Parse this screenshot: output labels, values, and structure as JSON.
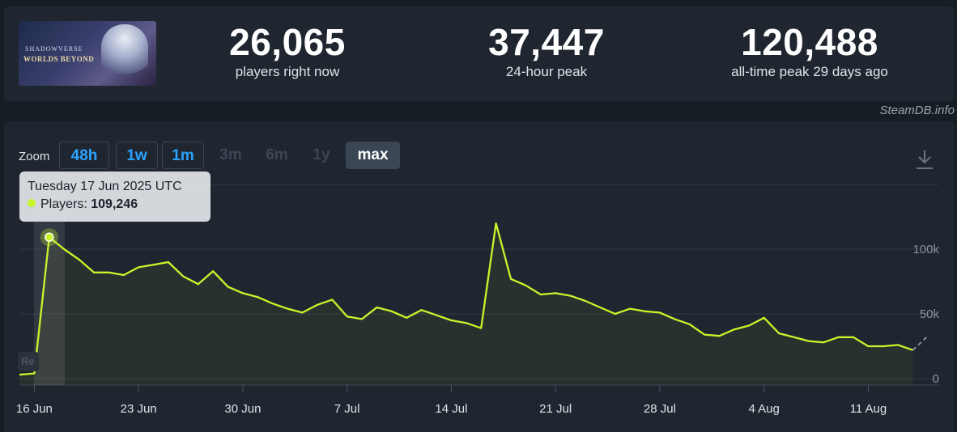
{
  "game": {
    "logo_line1": "SHADOWVERSE",
    "logo_line2": "WORLDS BEYOND"
  },
  "stats": [
    {
      "value": "26,065",
      "label": "players right now"
    },
    {
      "value": "37,447",
      "label": "24-hour peak"
    },
    {
      "value": "120,488",
      "label": "all-time peak 29 days ago"
    }
  ],
  "watermark": "SteamDB.info",
  "zoom": {
    "label": "Zoom",
    "buttons": [
      {
        "label": "48h",
        "state": "enabled"
      },
      {
        "label": "1w",
        "state": "enabled"
      },
      {
        "label": "1m",
        "state": "enabled"
      },
      {
        "label": "3m",
        "state": "disabled"
      },
      {
        "label": "6m",
        "state": "disabled"
      },
      {
        "label": "1y",
        "state": "disabled"
      },
      {
        "label": "max",
        "state": "active"
      }
    ]
  },
  "reset_label": "Re",
  "tooltip": {
    "date": "Tuesday 17 Jun 2025 UTC",
    "series_label": "Players:",
    "value": "109,246"
  },
  "colors": {
    "line": "#c8f52a",
    "background": "#1f2630",
    "accent": "#2ba3ff"
  },
  "chart_data": {
    "type": "line",
    "x_ticks": [
      "16 Jun",
      "23 Jun",
      "30 Jun",
      "7 Jul",
      "14 Jul",
      "21 Jul",
      "28 Jul",
      "4 Aug",
      "11 Aug"
    ],
    "y_ticks": [
      "0",
      "50k",
      "100k"
    ],
    "ylim": [
      0,
      150000
    ],
    "highlighted": {
      "x": "17 Jun",
      "y": 109246
    },
    "series": [
      {
        "points": [
          [
            "15 Jun",
            3000
          ],
          [
            "16 Jun",
            4000
          ],
          [
            "17 Jun",
            109246
          ],
          [
            "18 Jun",
            100000
          ],
          [
            "19 Jun",
            92000
          ],
          [
            "20 Jun",
            82000
          ],
          [
            "21 Jun",
            82000
          ],
          [
            "22 Jun",
            80000
          ],
          [
            "23 Jun",
            86000
          ],
          [
            "24 Jun",
            88000
          ],
          [
            "25 Jun",
            90000
          ],
          [
            "26 Jun",
            79000
          ],
          [
            "27 Jun",
            73000
          ],
          [
            "28 Jun",
            83000
          ],
          [
            "29 Jun",
            71000
          ],
          [
            "30 Jun",
            66000
          ],
          [
            "1 Jul",
            63000
          ],
          [
            "2 Jul",
            58000
          ],
          [
            "3 Jul",
            54000
          ],
          [
            "4 Jul",
            51000
          ],
          [
            "5 Jul",
            57000
          ],
          [
            "6 Jul",
            61000
          ],
          [
            "7 Jul",
            48000
          ],
          [
            "8 Jul",
            46000
          ],
          [
            "9 Jul",
            55000
          ],
          [
            "10 Jul",
            52000
          ],
          [
            "11 Jul",
            47000
          ],
          [
            "12 Jul",
            53000
          ],
          [
            "13 Jul",
            49000
          ],
          [
            "14 Jul",
            45000
          ],
          [
            "15 Jul",
            43000
          ],
          [
            "16 Jul",
            39000
          ],
          [
            "17 Jul",
            120000
          ],
          [
            "18 Jul",
            77000
          ],
          [
            "19 Jul",
            72000
          ],
          [
            "20 Jul",
            65000
          ],
          [
            "21 Jul",
            66000
          ],
          [
            "22 Jul",
            64000
          ],
          [
            "23 Jul",
            60000
          ],
          [
            "24 Jul",
            55000
          ],
          [
            "25 Jul",
            50000
          ],
          [
            "26 Jul",
            54000
          ],
          [
            "27 Jul",
            52000
          ],
          [
            "28 Jul",
            51000
          ],
          [
            "29 Jul",
            46000
          ],
          [
            "30 Jul",
            42000
          ],
          [
            "31 Jul",
            34000
          ],
          [
            "1 Aug",
            33000
          ],
          [
            "2 Aug",
            38000
          ],
          [
            "3 Aug",
            41000
          ],
          [
            "4 Aug",
            47000
          ],
          [
            "5 Aug",
            35000
          ],
          [
            "6 Aug",
            32000
          ],
          [
            "7 Aug",
            29000
          ],
          [
            "8 Aug",
            28000
          ],
          [
            "9 Aug",
            32000
          ],
          [
            "10 Aug",
            32000
          ],
          [
            "11 Aug",
            25000
          ],
          [
            "12 Aug",
            25000
          ],
          [
            "13 Aug",
            26000
          ],
          [
            "14 Aug",
            22000
          ]
        ],
        "forecast_to": [
          "15 Aug",
          33000
        ]
      }
    ]
  }
}
